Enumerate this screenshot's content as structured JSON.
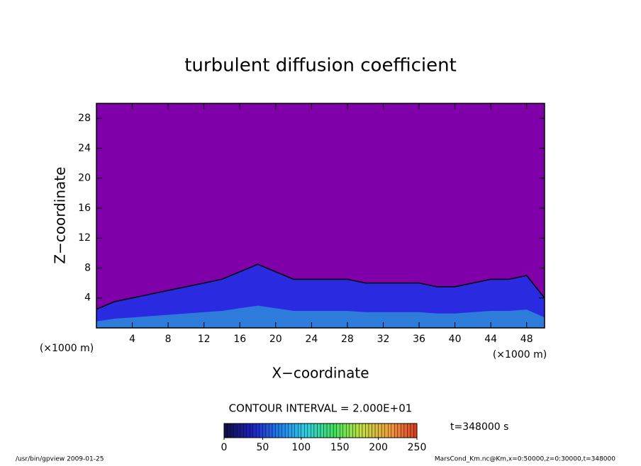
{
  "chart_data": {
    "type": "contour",
    "title": "turbulent diffusion coefficient",
    "x_label": "X−coordinate",
    "y_label": "Z−coordinate",
    "x_unit": "(×1000 m)",
    "y_unit": "(×1000 m)",
    "xlim": [
      0,
      50
    ],
    "xticks": [
      4,
      8,
      12,
      16,
      20,
      24,
      28,
      32,
      36,
      40,
      44,
      48
    ],
    "ylim": [
      0,
      30
    ],
    "yticks": [
      4,
      8,
      12,
      16,
      20,
      24,
      28
    ],
    "background_color": "#7f00a8",
    "field_color": "#2a2ae0",
    "core_color": "#30c0d8",
    "x": [
      0,
      2,
      4,
      6,
      8,
      10,
      12,
      14,
      16,
      18,
      20,
      22,
      24,
      26,
      28,
      30,
      32,
      34,
      36,
      38,
      40,
      42,
      44,
      46,
      48,
      50
    ],
    "values": [
      2.5,
      3.5,
      4,
      4.5,
      5,
      5.5,
      6,
      6.5,
      7.5,
      8.5,
      7.5,
      6.5,
      6.5,
      6.5,
      6.5,
      6,
      6,
      6,
      6,
      5.5,
      5.5,
      6,
      6.5,
      6.5,
      7,
      4
    ],
    "contour_interval": "CONTOUR INTERVAL = 2.000E+01",
    "time": "t=348000 s",
    "clim": [
      0,
      250
    ],
    "cticks": [
      0,
      50,
      100,
      150,
      200,
      250
    ],
    "colormap": [
      "#10104a",
      "#2020c0",
      "#2080f0",
      "#30d0e0",
      "#40e060",
      "#c0e040",
      "#f0a040",
      "#e04020"
    ],
    "footer_left": "/usr/bin/gpview  2009-01-25",
    "footer_right": "MarsCond_Km.nc@Km,x=0:50000,z=0:30000,t=348000"
  }
}
